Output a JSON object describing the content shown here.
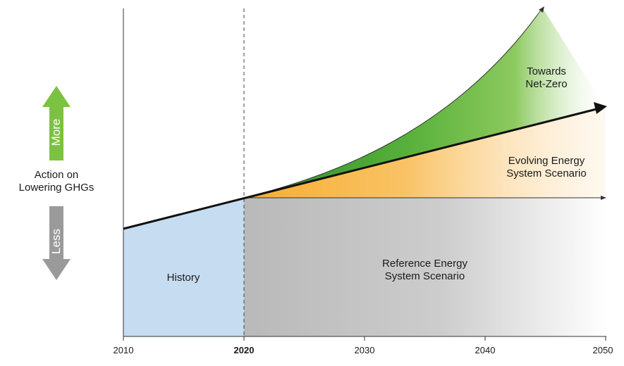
{
  "left_axis": {
    "label_line1": "Action on",
    "label_line2": "Lowering GHGs",
    "more_label": "More",
    "less_label": "Less",
    "more_color": "#7cc242",
    "less_color": "#9a9a9a"
  },
  "regions": {
    "history_label": "History",
    "reference_line1": "Reference Energy",
    "reference_line2": "System Scenario",
    "evolving_line1": "Evolving Energy",
    "evolving_line2": "System Scenario",
    "netzero_line1": "Towards",
    "netzero_line2": "Net-Zero"
  },
  "x_axis": {
    "ticks": [
      "2010",
      "2020",
      "2030",
      "2040",
      "2050"
    ],
    "highlighted_tick": "2020"
  },
  "colors": {
    "history_fill": "#c6dcf1",
    "reference_fill": "#bdbdbd",
    "evolving_fill": "#f7a823",
    "netzero_fill": "#6fbf3a"
  }
}
